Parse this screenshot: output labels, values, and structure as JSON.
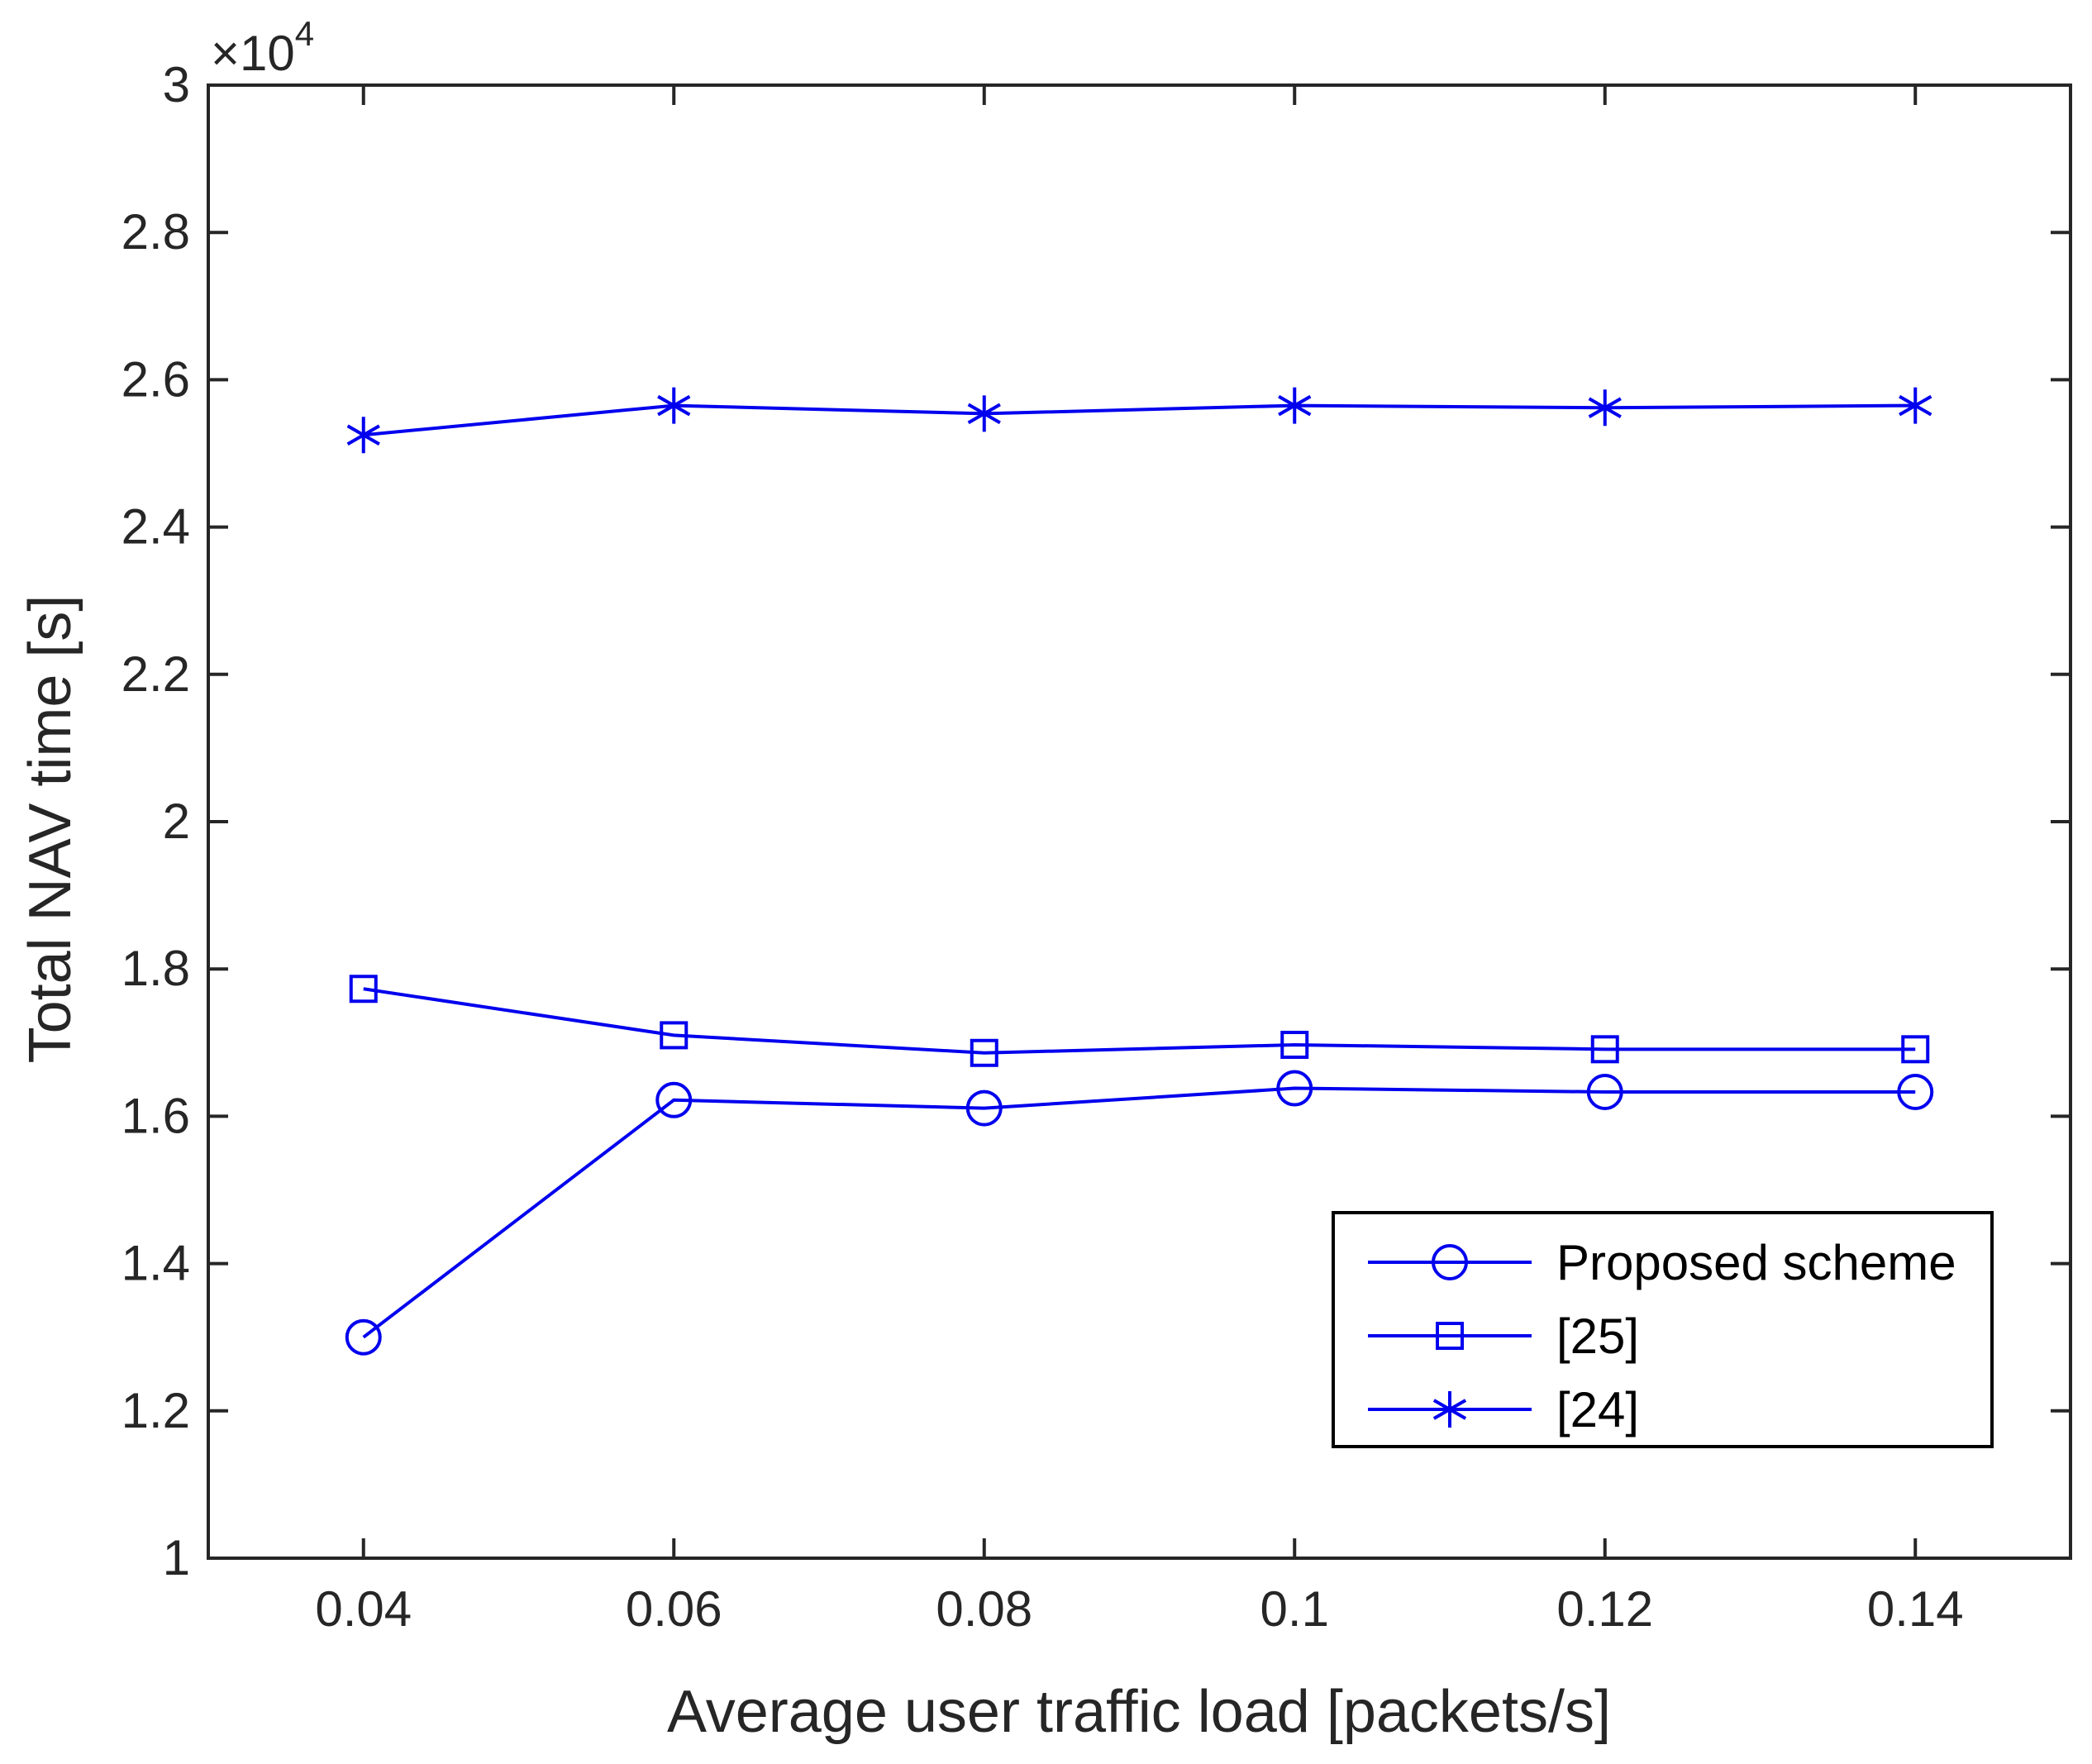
{
  "chart_data": {
    "type": "line",
    "title": "",
    "xlabel": "Average user traffic load [packets/s]",
    "ylabel": "Total NAV time [s]",
    "exponent_base": "10",
    "exponent_power": "4",
    "exponent_prefix": "×",
    "xlim": [
      0.03,
      0.15
    ],
    "ylim": [
      1,
      3
    ],
    "xticks": [
      0.04,
      0.06,
      0.08,
      0.1,
      0.12,
      0.14
    ],
    "xtick_labels": [
      "0.04",
      "0.06",
      "0.08",
      "0.1",
      "0.12",
      "0.14"
    ],
    "yticks": [
      1,
      1.2,
      1.4,
      1.6,
      1.8,
      2,
      2.2,
      2.4,
      2.6,
      2.8,
      3
    ],
    "ytick_labels": [
      "1",
      "1.2",
      "1.4",
      "1.6",
      "1.8",
      "2",
      "2.2",
      "2.4",
      "2.6",
      "2.8",
      "3"
    ],
    "x": [
      0.04,
      0.06,
      0.08,
      0.1,
      0.12,
      0.14
    ],
    "series": [
      {
        "name": "Proposed scheme",
        "marker": "circle",
        "color": "#0000ee",
        "values": [
          1.3,
          1.622,
          1.611,
          1.638,
          1.633,
          1.633
        ]
      },
      {
        "name": "[25]",
        "marker": "square",
        "color": "#0000ee",
        "values": [
          1.773,
          1.71,
          1.686,
          1.697,
          1.691,
          1.691
        ]
      },
      {
        "name": "[24]",
        "marker": "asterisk",
        "color": "#0000ee",
        "values": [
          2.525,
          2.565,
          2.554,
          2.565,
          2.562,
          2.565
        ]
      }
    ],
    "legend_position": "lower-right",
    "grid": false
  }
}
